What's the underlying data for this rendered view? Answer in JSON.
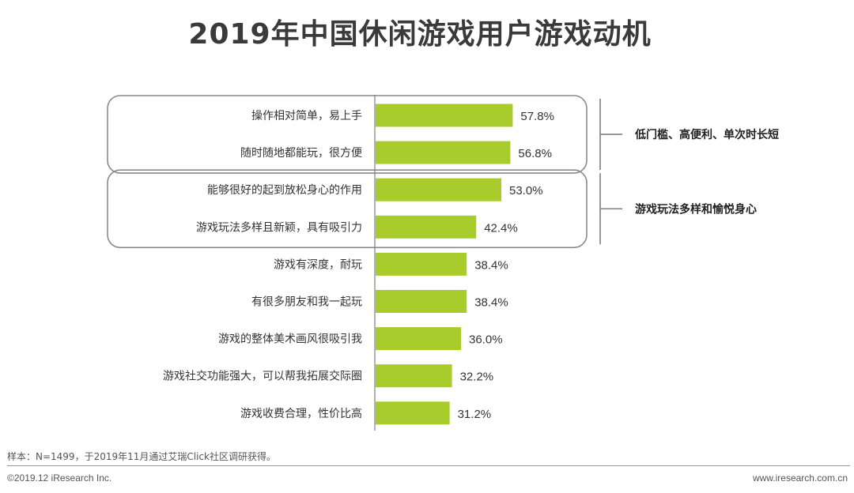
{
  "page": {
    "title": "2019年中国休闲游戏用户游戏动机",
    "note": "样本：N=1499，于2019年11月通过艾瑞Click社区调研获得。",
    "copyright": "©2019.12 iResearch Inc.",
    "website": "www.iresearch.com.cn"
  },
  "colors": {
    "bar": "#a8cc2c",
    "frame": "#8a8a8a",
    "axis": "#7f7f7f",
    "text": "#333333"
  },
  "chart_data": {
    "type": "bar",
    "orientation": "horizontal",
    "title": "2019年中国休闲游戏用户游戏动机",
    "xlabel": "",
    "ylabel": "",
    "xlim": [
      0,
      100
    ],
    "unit": "%",
    "categories": [
      "操作相对简单，易上手",
      "随时随地都能玩，很方便",
      "能够很好的起到放松身心的作用",
      "游戏玩法多样且新颖，具有吸引力",
      "游戏有深度，耐玩",
      "有很多朋友和我一起玩",
      "游戏的整体美术画风很吸引我",
      "游戏社交功能强大，可以帮我拓展交际圈",
      "游戏收费合理，性价比高"
    ],
    "values": [
      57.8,
      56.8,
      53.0,
      42.4,
      38.4,
      38.4,
      36.0,
      32.2,
      31.2
    ],
    "value_labels": [
      "57.8%",
      "56.8%",
      "53.0%",
      "42.4%",
      "38.4%",
      "38.4%",
      "36.0%",
      "32.2%",
      "31.2%"
    ],
    "groups": [
      {
        "label": "低门槛、高便利、单次时长短",
        "start": 0,
        "end": 1
      },
      {
        "label": "游戏玩法多样和愉悦身心",
        "start": 2,
        "end": 3
      }
    ]
  }
}
